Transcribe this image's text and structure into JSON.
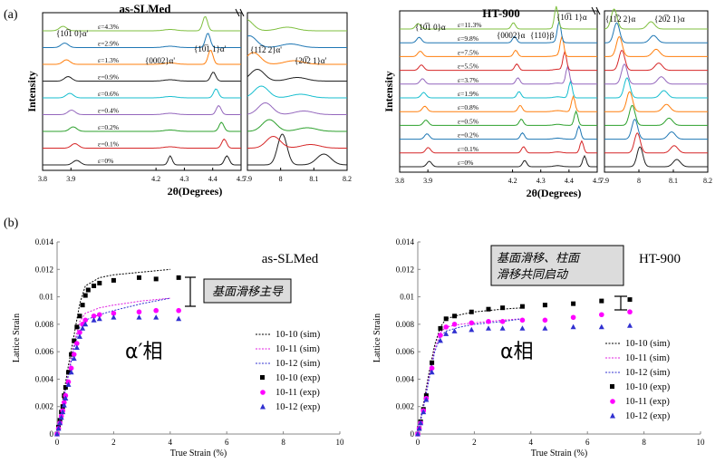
{
  "chart_data": [
    {
      "type": "line",
      "panel_label": "(a)",
      "title": "as-SLMed",
      "xlabel": "2θ(Degrees)",
      "ylabel": "Intensity",
      "x_segments": [
        [
          3.8,
          4.5
        ],
        [
          7.9,
          8.2
        ]
      ],
      "xticks_segment1": [
        "3.8",
        "3.9",
        "4.2",
        "4.3",
        "4.4",
        "4.5"
      ],
      "xticks_segment2": [
        "7.9",
        "8",
        "8.1",
        "8.2"
      ],
      "peak_labels": [
        "{10̅1 0}α'",
        "{0002}α'",
        "{10̅1 1}α'",
        "{11̅2 2}α'",
        "{20̅2 1}α'"
      ],
      "series": [
        {
          "name": "ε=0%",
          "color": "#222222"
        },
        {
          "name": "ε=0.1%",
          "color": "#d62728"
        },
        {
          "name": "ε=0.2%",
          "color": "#2ca02c"
        },
        {
          "name": "ε=0.4%",
          "color": "#9467bd"
        },
        {
          "name": "ε=0.6%",
          "color": "#17becf"
        },
        {
          "name": "ε=0.9%",
          "color": "#1f1f1f"
        },
        {
          "name": "ε=1.3%",
          "color": "#ff7f0e"
        },
        {
          "name": "ε=2.9%",
          "color": "#1f77b4"
        },
        {
          "name": "ε=4.3%",
          "color": "#7fbf3f"
        }
      ]
    },
    {
      "type": "line",
      "title": "HT-900",
      "xlabel": "2θ(Degrees)",
      "ylabel": "Intensity",
      "x_segments": [
        [
          3.8,
          4.5
        ],
        [
          7.9,
          8.2
        ]
      ],
      "xticks_segment1": [
        "3.8",
        "3.9",
        "4.2",
        "4.3",
        "4.4",
        "4.5"
      ],
      "xticks_segment2": [
        "7.9",
        "8",
        "8.1",
        "8.2"
      ],
      "peak_labels": [
        "{10̅1 0}α",
        "{0002}α",
        "{110}β",
        "{10̅1 1}α",
        "{11̅2 2}α",
        "{20̅2 1}α"
      ],
      "series": [
        {
          "name": "ε=0%",
          "color": "#222222"
        },
        {
          "name": "ε=0.1%",
          "color": "#d62728"
        },
        {
          "name": "ε=0.2%",
          "color": "#1f77b4"
        },
        {
          "name": "ε=0.5%",
          "color": "#2ca02c"
        },
        {
          "name": "ε=0.8%",
          "color": "#ff7f0e"
        },
        {
          "name": "ε=1.9%",
          "color": "#17becf"
        },
        {
          "name": "ε=3.7%",
          "color": "#9467bd"
        },
        {
          "name": "ε=5.5%",
          "color": "#d62728"
        },
        {
          "name": "ε=7.5%",
          "color": "#ff7f0e"
        },
        {
          "name": "ε=9.8%",
          "color": "#1f77b4"
        },
        {
          "name": "ε=11.3%",
          "color": "#7fbf3f"
        }
      ]
    },
    {
      "type": "scatter",
      "panel_label": "(b)",
      "title": "as-SLMed",
      "xlabel": "True Strain (%)",
      "ylabel": "Lattice Strain",
      "xlim": [
        0,
        10
      ],
      "ylim": [
        0,
        0.014
      ],
      "xticks": [
        "0",
        "2",
        "4",
        "6",
        "8",
        "10"
      ],
      "yticks": [
        "0",
        "0.002",
        "0.004",
        "0.006",
        "0.008",
        "0.01",
        "0.012",
        "0.014"
      ],
      "phase_label": "α′相",
      "annotation": "基面滑移主导",
      "series": [
        {
          "name": "10-10 (sim)",
          "style": "dotted",
          "color": "#000000",
          "x": [
            0,
            0.2,
            0.4,
            0.6,
            0.8,
            1.0,
            1.5,
            2.0,
            3.0,
            4.0
          ],
          "y": [
            0,
            0.0025,
            0.005,
            0.0072,
            0.0095,
            0.0108,
            0.0114,
            0.0116,
            0.0118,
            0.012
          ]
        },
        {
          "name": "10-11 (sim)",
          "style": "dotted",
          "color": "#e01fe0",
          "x": [
            0,
            0.2,
            0.4,
            0.6,
            0.8,
            1.0,
            1.5,
            2.0,
            3.0,
            4.0
          ],
          "y": [
            0,
            0.0022,
            0.0045,
            0.0066,
            0.0082,
            0.0088,
            0.0092,
            0.0094,
            0.0097,
            0.0099
          ]
        },
        {
          "name": "10-12 (sim)",
          "style": "dotted",
          "color": "#3030d0",
          "x": [
            0,
            0.2,
            0.4,
            0.6,
            0.8,
            1.0,
            1.5,
            2.0,
            3.0,
            4.0
          ],
          "y": [
            0,
            0.0021,
            0.0043,
            0.0063,
            0.0078,
            0.0083,
            0.0087,
            0.009,
            0.0095,
            0.0099
          ]
        },
        {
          "name": "10-10 (exp)",
          "marker": "square",
          "color": "#000000",
          "x": [
            0,
            0.05,
            0.1,
            0.15,
            0.2,
            0.25,
            0.3,
            0.4,
            0.5,
            0.6,
            0.7,
            0.8,
            0.9,
            1.0,
            1.1,
            1.3,
            1.5,
            2.0,
            2.9,
            3.5,
            4.3
          ],
          "y": [
            0,
            0.0005,
            0.001,
            0.0016,
            0.002,
            0.0028,
            0.0034,
            0.0045,
            0.0058,
            0.0068,
            0.0078,
            0.0086,
            0.0094,
            0.0101,
            0.0105,
            0.0108,
            0.011,
            0.0112,
            0.0114,
            0.0113,
            0.0114
          ]
        },
        {
          "name": "10-11 (exp)",
          "marker": "circle",
          "color": "#ff00ff",
          "x": [
            0,
            0.05,
            0.1,
            0.15,
            0.2,
            0.25,
            0.3,
            0.4,
            0.5,
            0.6,
            0.7,
            0.8,
            0.9,
            1.0,
            1.3,
            1.5,
            2.0,
            2.9,
            3.5,
            4.3
          ],
          "y": [
            0,
            0.0004,
            0.0008,
            0.0013,
            0.0017,
            0.0023,
            0.0028,
            0.0038,
            0.0048,
            0.0058,
            0.0066,
            0.0074,
            0.008,
            0.0083,
            0.0086,
            0.0087,
            0.0088,
            0.0089,
            0.009,
            0.009
          ]
        },
        {
          "name": "10-12 (exp)",
          "marker": "triangle",
          "color": "#3030d0",
          "x": [
            0,
            0.05,
            0.1,
            0.15,
            0.2,
            0.25,
            0.3,
            0.4,
            0.5,
            0.6,
            0.7,
            0.8,
            0.9,
            1.0,
            1.3,
            1.5,
            2.0,
            2.9,
            3.5,
            4.3
          ],
          "y": [
            0,
            0.0004,
            0.0008,
            0.0012,
            0.0016,
            0.0021,
            0.0026,
            0.0036,
            0.0045,
            0.0055,
            0.0063,
            0.0071,
            0.0077,
            0.008,
            0.0083,
            0.0084,
            0.0085,
            0.0085,
            0.0085,
            0.0084
          ]
        }
      ]
    },
    {
      "type": "scatter",
      "title": "HT-900",
      "xlabel": "True Strain (%)",
      "ylabel": "Lattice Strain",
      "xlim": [
        0,
        10
      ],
      "ylim": [
        0,
        0.014
      ],
      "xticks": [
        "0",
        "2",
        "4",
        "6",
        "8",
        "10"
      ],
      "yticks": [
        "0",
        "0.002",
        "0.004",
        "0.006",
        "0.008",
        "0.01",
        "0.012",
        "0.014"
      ],
      "phase_label": "α相",
      "annotation": "基面滑移、柱面\n滑移共同启动",
      "series": [
        {
          "name": "10-10 (sim)",
          "style": "dotted",
          "color": "#000000",
          "x": [
            0,
            0.2,
            0.4,
            0.6,
            0.8,
            1.0,
            1.5,
            2.0,
            3.0,
            3.7
          ],
          "y": [
            0,
            0.0022,
            0.0045,
            0.0065,
            0.0078,
            0.0084,
            0.0087,
            0.0089,
            0.0091,
            0.0092
          ]
        },
        {
          "name": "10-11 (sim)",
          "style": "dotted",
          "color": "#e01fe0",
          "x": [
            0,
            0.2,
            0.4,
            0.6,
            0.8,
            1.0,
            1.5,
            2.0,
            3.0,
            3.7
          ],
          "y": [
            0,
            0.002,
            0.0042,
            0.0062,
            0.0074,
            0.0078,
            0.008,
            0.0081,
            0.0083,
            0.0084
          ]
        },
        {
          "name": "10-12 (sim)",
          "style": "dotted",
          "color": "#3030d0",
          "x": [
            0,
            0.2,
            0.4,
            0.6,
            0.8,
            1.0,
            1.5,
            2.0,
            3.0,
            3.7
          ],
          "y": [
            0,
            0.0019,
            0.004,
            0.006,
            0.0071,
            0.0075,
            0.0078,
            0.008,
            0.0082,
            0.0084
          ]
        },
        {
          "name": "10-10 (exp)",
          "marker": "square",
          "color": "#000000",
          "x": [
            0,
            0.05,
            0.1,
            0.2,
            0.3,
            0.5,
            0.8,
            1.0,
            1.3,
            1.9,
            2.5,
            3.0,
            3.7,
            4.5,
            5.5,
            6.5,
            7.5
          ],
          "y": [
            0,
            0.0004,
            0.0009,
            0.0018,
            0.0028,
            0.0052,
            0.0077,
            0.0084,
            0.0086,
            0.0089,
            0.0091,
            0.0092,
            0.0093,
            0.0094,
            0.0095,
            0.0097,
            0.0098
          ]
        },
        {
          "name": "10-11 (exp)",
          "marker": "circle",
          "color": "#ff00ff",
          "x": [
            0,
            0.05,
            0.1,
            0.2,
            0.3,
            0.5,
            0.8,
            1.0,
            1.3,
            1.9,
            2.5,
            3.0,
            3.7,
            4.5,
            5.5,
            6.5,
            7.5
          ],
          "y": [
            0,
            0.0004,
            0.0008,
            0.0017,
            0.0026,
            0.0048,
            0.0072,
            0.0078,
            0.008,
            0.0081,
            0.0082,
            0.0082,
            0.0083,
            0.0083,
            0.0085,
            0.0087,
            0.0089
          ]
        },
        {
          "name": "10-12 (exp)",
          "marker": "triangle",
          "color": "#3030d0",
          "x": [
            0,
            0.05,
            0.1,
            0.2,
            0.3,
            0.5,
            0.8,
            1.0,
            1.3,
            1.9,
            2.5,
            3.0,
            3.7,
            4.5,
            5.5,
            6.5,
            7.5
          ],
          "y": [
            0,
            0.0004,
            0.0008,
            0.0016,
            0.0025,
            0.0045,
            0.0068,
            0.0073,
            0.0075,
            0.0076,
            0.0077,
            0.0077,
            0.0077,
            0.0077,
            0.0078,
            0.0078,
            0.0079
          ]
        }
      ]
    }
  ]
}
